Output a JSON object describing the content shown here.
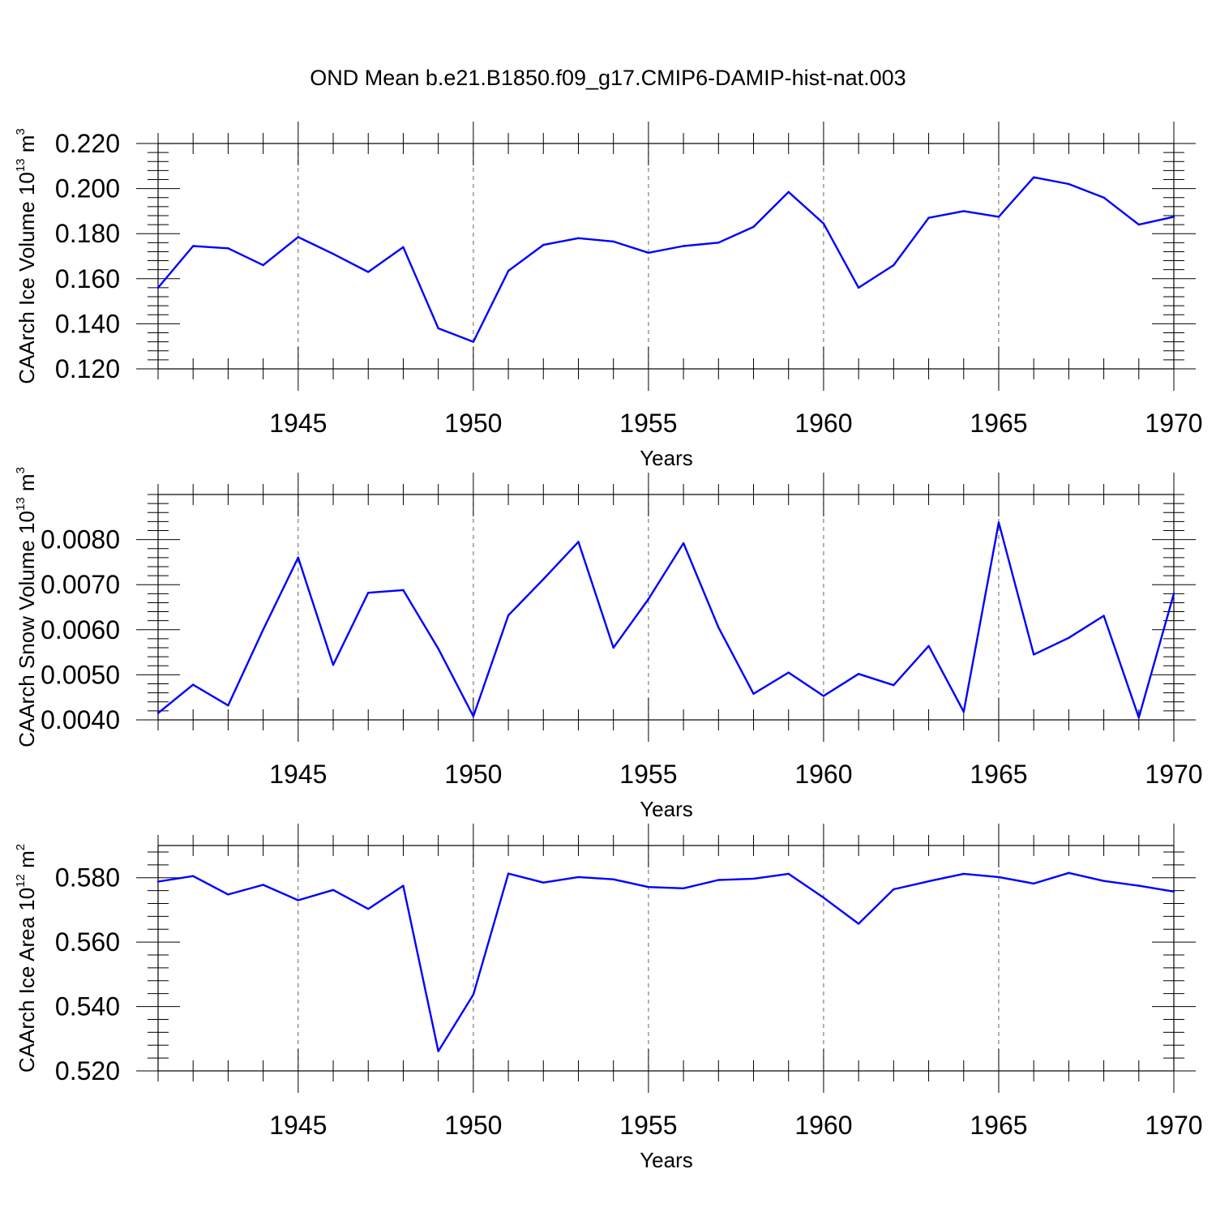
{
  "title": "OND Mean b.e21.B1850.f09_g17.CMIP6-DAMIP-hist-nat.003",
  "line_color": "#0000ff",
  "chart_data": [
    {
      "type": "line",
      "ylabel": "CAArch Ice Volume 10",
      "ylabel_exp": "13",
      "ylabel_unit": " m",
      "ylabel_unit_exp": "3",
      "xlabel": "Years",
      "xlim": [
        1941,
        1970
      ],
      "ylim": [
        0.12,
        0.22
      ],
      "yticks": [
        0.12,
        0.14,
        0.16,
        0.18,
        0.2,
        0.22
      ],
      "ytick_labels": [
        "0.120",
        "0.140",
        "0.160",
        "0.180",
        "0.200",
        "0.220"
      ],
      "xticks": [
        1945,
        1950,
        1955,
        1960,
        1965,
        1970
      ],
      "xtick_labels": [
        "1945",
        "1950",
        "1955",
        "1960",
        "1965",
        "1970"
      ],
      "x": [
        1941,
        1942,
        1943,
        1944,
        1945,
        1946,
        1947,
        1948,
        1949,
        1950,
        1951,
        1952,
        1953,
        1954,
        1955,
        1956,
        1957,
        1958,
        1959,
        1960,
        1961,
        1962,
        1963,
        1964,
        1965,
        1966,
        1967,
        1968,
        1969,
        1970
      ],
      "values": [
        0.156,
        0.1745,
        0.1735,
        0.166,
        0.1785,
        0.171,
        0.163,
        0.174,
        0.138,
        0.132,
        0.1635,
        0.175,
        0.178,
        0.1765,
        0.1715,
        0.1745,
        0.176,
        0.183,
        0.1985,
        0.1845,
        0.156,
        0.166,
        0.187,
        0.19,
        0.1875,
        0.205,
        0.202,
        0.196,
        0.184,
        0.1875
      ]
    },
    {
      "type": "line",
      "ylabel": "CAArch Snow Volume 10",
      "ylabel_exp": "13",
      "ylabel_unit": " m",
      "ylabel_unit_exp": "3",
      "xlabel": "Years",
      "xlim": [
        1941,
        1970
      ],
      "ylim": [
        0.004,
        0.009
      ],
      "yticks": [
        0.004,
        0.005,
        0.006,
        0.007,
        0.008
      ],
      "ytick_labels": [
        "0.0040",
        "0.0050",
        "0.0060",
        "0.0070",
        "0.0080"
      ],
      "xticks": [
        1945,
        1950,
        1955,
        1960,
        1965,
        1970
      ],
      "xtick_labels": [
        "1945",
        "1950",
        "1955",
        "1960",
        "1965",
        "1970"
      ],
      "x": [
        1941,
        1942,
        1943,
        1944,
        1945,
        1946,
        1947,
        1948,
        1949,
        1950,
        1951,
        1952,
        1953,
        1954,
        1955,
        1956,
        1957,
        1958,
        1959,
        1960,
        1961,
        1962,
        1963,
        1964,
        1965,
        1966,
        1967,
        1968,
        1969,
        1970
      ],
      "values": [
        0.00415,
        0.00478,
        0.00432,
        0.006,
        0.0076,
        0.00522,
        0.00682,
        0.00688,
        0.00558,
        0.00408,
        0.00632,
        0.00712,
        0.00795,
        0.0056,
        0.00668,
        0.00792,
        0.00605,
        0.00458,
        0.00505,
        0.00453,
        0.00502,
        0.00477,
        0.00564,
        0.00418,
        0.00838,
        0.00545,
        0.00582,
        0.00631,
        0.00405,
        0.0068
      ]
    },
    {
      "type": "line",
      "ylabel": "CAArch Ice Area 10",
      "ylabel_exp": "12",
      "ylabel_unit": " m",
      "ylabel_unit_exp": "2",
      "xlabel": "Years",
      "xlim": [
        1941,
        1970
      ],
      "ylim": [
        0.52,
        0.59
      ],
      "yticks": [
        0.52,
        0.54,
        0.56,
        0.58
      ],
      "ytick_labels": [
        "0.520",
        "0.540",
        "0.560",
        "0.580"
      ],
      "xticks": [
        1945,
        1950,
        1955,
        1960,
        1965,
        1970
      ],
      "xtick_labels": [
        "1945",
        "1950",
        "1955",
        "1960",
        "1965",
        "1970"
      ],
      "x": [
        1941,
        1942,
        1943,
        1944,
        1945,
        1946,
        1947,
        1948,
        1949,
        1950,
        1951,
        1952,
        1953,
        1954,
        1955,
        1956,
        1957,
        1958,
        1959,
        1960,
        1961,
        1962,
        1963,
        1964,
        1965,
        1966,
        1967,
        1968,
        1969,
        1970
      ],
      "values": [
        0.5788,
        0.5805,
        0.5748,
        0.5778,
        0.573,
        0.5762,
        0.5703,
        0.5775,
        0.5261,
        0.5437,
        0.5813,
        0.5785,
        0.5802,
        0.5795,
        0.5771,
        0.5767,
        0.5793,
        0.5797,
        0.5812,
        0.5738,
        0.5657,
        0.5764,
        0.5789,
        0.5812,
        0.5802,
        0.5782,
        0.5815,
        0.579,
        0.5775,
        0.5757
      ]
    }
  ]
}
